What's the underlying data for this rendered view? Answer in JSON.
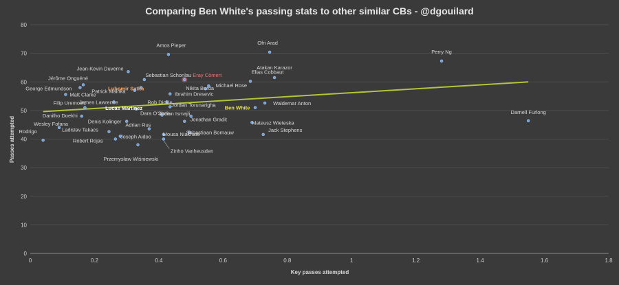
{
  "chart_data": {
    "type": "scatter",
    "title": "Comparing Ben White's passing stats to other similar CBs - @dgouilard",
    "xlabel": "Key passes attempted",
    "ylabel": "Passes attempted",
    "xlim": [
      0,
      1.8
    ],
    "ylim": [
      0,
      80
    ],
    "x_ticks": [
      "0",
      "0.2",
      "0.4",
      "0.6",
      "0.8",
      "1",
      "1.2",
      "1.4",
      "1.6",
      "1.8"
    ],
    "y_ticks": [
      "0",
      "10",
      "20",
      "30",
      "40",
      "50",
      "60",
      "70",
      "80"
    ],
    "grid": "horizontal",
    "trendline": {
      "x": [
        0.04,
        1.55
      ],
      "y": [
        49.6,
        60.0
      ],
      "color": "#b3c436"
    },
    "point_color": "#6fa0dc",
    "points": [
      {
        "name": "Amos Pieper",
        "x": 0.43,
        "y": 69.6
      },
      {
        "name": "Ofri Arad",
        "x": 0.745,
        "y": 70.4
      },
      {
        "name": "Perry Ng",
        "x": 1.28,
        "y": 67.3
      },
      {
        "name": "Jean-Kevin Duverne",
        "x": 0.305,
        "y": 63.6
      },
      {
        "name": "Sebastian Schonlau",
        "x": 0.355,
        "y": 60.8
      },
      {
        "name": "Eray Cömert",
        "x": 0.48,
        "y": 60.8,
        "highlight": "red"
      },
      {
        "name": "Elias Cobbaut",
        "x": 0.685,
        "y": 60.2
      },
      {
        "name": "Atakan Karazor",
        "x": 0.76,
        "y": 61.5
      },
      {
        "name": "Jérôme Onguéné",
        "x": 0.165,
        "y": 59.0
      },
      {
        "name": "George Edmundson",
        "x": 0.155,
        "y": 58.0
      },
      {
        "name": "Lubomir Satka",
        "x": 0.345,
        "y": 58.0,
        "highlight": "orange"
      },
      {
        "name": "Patrick Mainka",
        "x": 0.325,
        "y": 57.0
      },
      {
        "name": "Nikita Burda",
        "x": 0.545,
        "y": 57.6
      },
      {
        "name": "Michael Rose",
        "x": 0.555,
        "y": 58.6
      },
      {
        "name": "Matt Clarke",
        "x": 0.11,
        "y": 55.6
      },
      {
        "name": "Ibrahim Dresevic",
        "x": 0.435,
        "y": 55.8
      },
      {
        "name": "Rob Dickie",
        "x": 0.425,
        "y": 53.0
      },
      {
        "name": "James Lawrence",
        "x": 0.26,
        "y": 53.0
      },
      {
        "name": "Waldemar Anton",
        "x": 0.73,
        "y": 52.6
      },
      {
        "name": "Filip Uremović",
        "x": 0.17,
        "y": 51.0
      },
      {
        "name": "Jordan Torunarigha",
        "x": 0.435,
        "y": 51.3
      },
      {
        "name": "Ben White",
        "x": 0.7,
        "y": 51.0,
        "highlight": "yellow"
      },
      {
        "name": "Lucas Martínez",
        "x": 0.33,
        "y": 50.5,
        "highlight": "white"
      },
      {
        "name": "Dara O'Shea",
        "x": 0.41,
        "y": 48.4
      },
      {
        "name": "Ardian Ismajli",
        "x": 0.5,
        "y": 48.0
      },
      {
        "name": "Danilho Doekhi",
        "x": 0.16,
        "y": 48.0
      },
      {
        "name": "Denis Kolinger",
        "x": 0.3,
        "y": 46.2
      },
      {
        "name": "Jonathan Gradit",
        "x": 0.48,
        "y": 46.2
      },
      {
        "name": "Mateusz Wieteska",
        "x": 0.69,
        "y": 45.8
      },
      {
        "name": "Darnell Furlong",
        "x": 1.55,
        "y": 46.4
      },
      {
        "name": "Wesley Fofana",
        "x": 0.09,
        "y": 44.0
      },
      {
        "name": "Adrian Rus",
        "x": 0.37,
        "y": 43.6
      },
      {
        "name": "Ladislav Takacs",
        "x": 0.245,
        "y": 42.6
      },
      {
        "name": "Sebastiaan Bornauw",
        "x": 0.495,
        "y": 42.4
      },
      {
        "name": "Jack Stephens",
        "x": 0.725,
        "y": 41.6
      },
      {
        "name": "Mousa Niakhaté",
        "x": 0.415,
        "y": 41.6
      },
      {
        "name": "Rodrigo",
        "x": 0.04,
        "y": 39.6
      },
      {
        "name": "Joseph Aidoo",
        "x": 0.28,
        "y": 41.0
      },
      {
        "name": "Robert Rojas",
        "x": 0.265,
        "y": 40.0
      },
      {
        "name": "Zinho Vanheusden",
        "x": 0.415,
        "y": 40.0
      },
      {
        "name": "Przemysław Wiśniewski",
        "x": 0.335,
        "y": 38.0
      }
    ]
  }
}
